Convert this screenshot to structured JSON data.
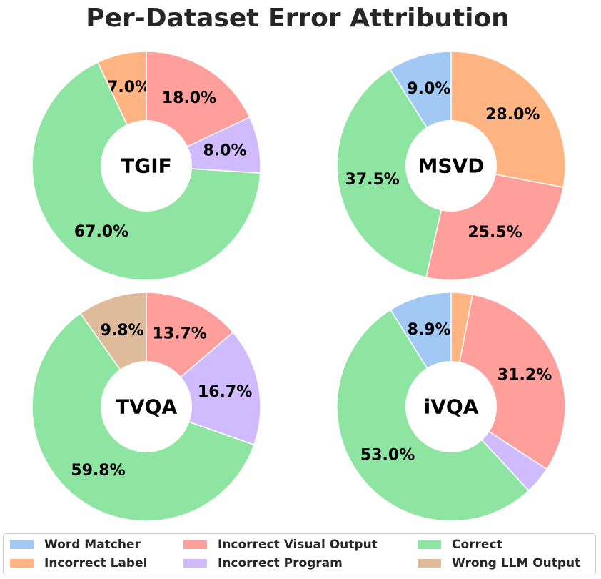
{
  "chart_data": {
    "type": "pie",
    "title": "Per-Dataset Error Attribution",
    "start_angle_deg": 90,
    "direction": "counterclockwise",
    "hole_ratio": 0.4,
    "categories": [
      "Word Matcher",
      "Incorrect Label",
      "Incorrect Visual Output",
      "Incorrect Program",
      "Correct",
      "Wrong LLM Output"
    ],
    "colors": {
      "Word Matcher": "#a1c9f4",
      "Incorrect Label": "#ffb482",
      "Incorrect Visual Output": "#ff9f9b",
      "Incorrect Program": "#d0bbff",
      "Correct": "#8de5a1",
      "Wrong LLM Output": "#debb9b"
    },
    "legend": {
      "placement": "bottom",
      "columns": [
        [
          "Word Matcher",
          "Incorrect Label"
        ],
        [
          "Incorrect Visual Output",
          "Incorrect Program"
        ],
        [
          "Correct",
          "Wrong LLM Output"
        ]
      ]
    },
    "datasets": [
      {
        "name": "TGIF",
        "slices": [
          {
            "category": "Incorrect Label",
            "value": 7.0,
            "label": "7.0%"
          },
          {
            "category": "Correct",
            "value": 67.0,
            "label": "67.0%"
          },
          {
            "category": "Incorrect Program",
            "value": 8.0,
            "label": "8.0%"
          },
          {
            "category": "Incorrect Visual Output",
            "value": 18.0,
            "label": "18.0%"
          }
        ]
      },
      {
        "name": "MSVD",
        "slices": [
          {
            "category": "Word Matcher",
            "value": 9.0,
            "label": "9.0%"
          },
          {
            "category": "Correct",
            "value": 37.5,
            "label": "37.5%"
          },
          {
            "category": "Incorrect Visual Output",
            "value": 25.5,
            "label": "25.5%"
          },
          {
            "category": "Incorrect Label",
            "value": 28.0,
            "label": "28.0%"
          }
        ]
      },
      {
        "name": "TVQA",
        "slices": [
          {
            "category": "Wrong LLM Output",
            "value": 9.8,
            "label": "9.8%"
          },
          {
            "category": "Correct",
            "value": 59.8,
            "label": "59.8%"
          },
          {
            "category": "Incorrect Program",
            "value": 16.7,
            "label": "16.7%"
          },
          {
            "category": "Incorrect Visual Output",
            "value": 13.7,
            "label": "13.7%"
          }
        ]
      },
      {
        "name": "iVQA",
        "slices": [
          {
            "category": "Word Matcher",
            "value": 8.9,
            "label": "8.9%"
          },
          {
            "category": "Correct",
            "value": 53.0,
            "label": "53.0%"
          },
          {
            "category": "Incorrect Program",
            "value": 3.9,
            "label": ""
          },
          {
            "category": "Incorrect Visual Output",
            "value": 31.2,
            "label": "31.2%"
          },
          {
            "category": "Incorrect Label",
            "value": 3.0,
            "label": ""
          }
        ]
      }
    ]
  }
}
